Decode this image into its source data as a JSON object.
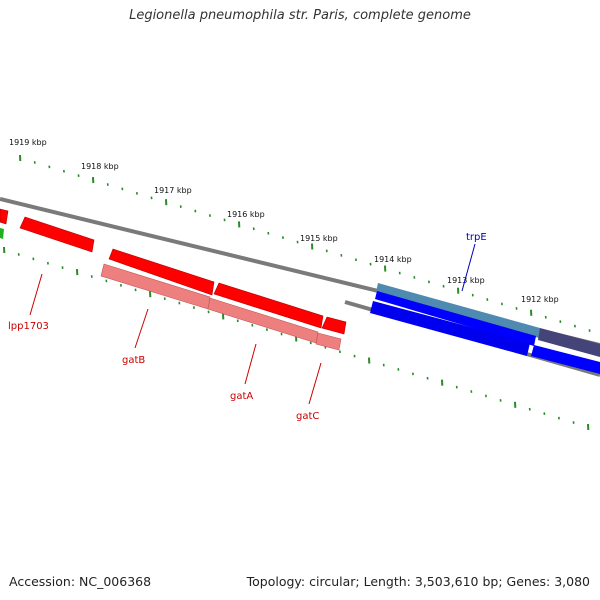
{
  "title": "Legionella pneumophila str. Paris, complete genome",
  "footer": {
    "accession": "Accession: NC_006368",
    "topology": "Topology: circular; Length: 3,503,610 bp; Genes: 3,080"
  },
  "colors": {
    "backbone": "#7a7a7a",
    "tick": "#2a8a2a",
    "gene_forward": "#ff0000",
    "gene_reverse": "#ee7f7f",
    "blue_forward": "#0000ff",
    "blue_reverse": "#0000ee",
    "dark_purple": "#454478",
    "teal": "#4f8ab0",
    "red_label": "#cc0000",
    "blue_label": "#0000bb",
    "green": "#21b021"
  },
  "ruler": {
    "labels": [
      "1919 kbp",
      "1918 kbp",
      "1917 kbp",
      "1916 kbp",
      "1915 kbp",
      "1914 kbp",
      "1913 kbp",
      "1912 kbp"
    ]
  },
  "gene_labels": [
    "lpp1703",
    "gatB",
    "gatA",
    "gatC",
    "trpE"
  ]
}
